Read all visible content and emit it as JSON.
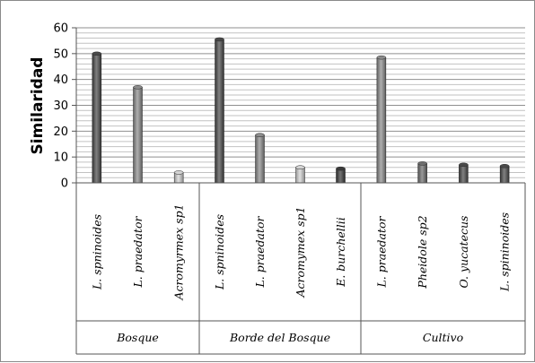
{
  "chart_data": {
    "type": "bar",
    "ylabel": "Similaridad",
    "ylim": [
      0,
      60
    ],
    "yticks": [
      0,
      10,
      20,
      30,
      40,
      50,
      60
    ],
    "grid": true,
    "legend": "none",
    "groups": [
      {
        "name": "Bosque",
        "bars": [
          {
            "label": "L. spninoides",
            "value": 50,
            "color": "#4a4a4a"
          },
          {
            "label": "L. praedator",
            "value": 37,
            "color": "#8c8c8c"
          },
          {
            "label": "Acromyrmex sp1",
            "value": 4,
            "color": "#d4d4d4"
          }
        ]
      },
      {
        "name": "Borde del Bosque",
        "bars": [
          {
            "label": "L. spninoides",
            "value": 55.5,
            "color": "#4a4a4a"
          },
          {
            "label": "L. praedator",
            "value": 18.5,
            "color": "#8c8c8c"
          },
          {
            "label": "Acromymex sp1",
            "value": 6,
            "color": "#d4d4d4"
          },
          {
            "label": "E. burchellii",
            "value": 5.5,
            "color": "#3a3a3a"
          }
        ]
      },
      {
        "name": "Cultivo",
        "bars": [
          {
            "label": "L. praedator",
            "value": 48.5,
            "color": "#8c8c8c"
          },
          {
            "label": "Pheidole sp2",
            "value": 7.5,
            "color": "#6e6e6e"
          },
          {
            "label": "O. yucatecus",
            "value": 7,
            "color": "#4a4a4a"
          },
          {
            "label": "L. spininoides",
            "value": 6.5,
            "color": "#4a4a4a"
          }
        ]
      }
    ]
  }
}
